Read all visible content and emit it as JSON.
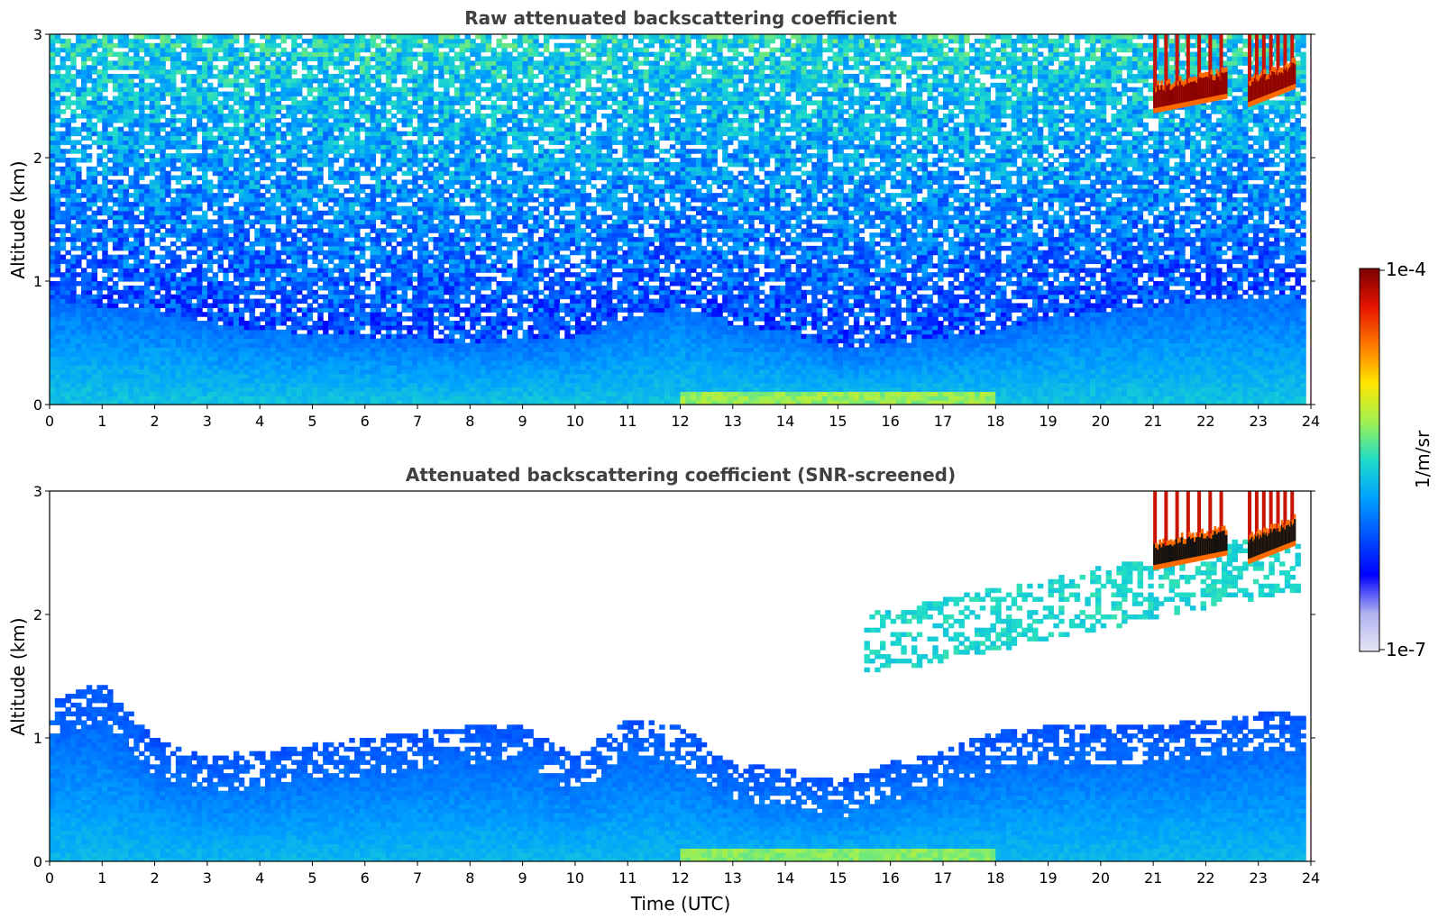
{
  "colorbar": {
    "label": "1/m/sr",
    "max_label": "1e-4",
    "min_label": "1e-7",
    "colormap": [
      "#e6e6f5",
      "#b0b0f0",
      "#0000ff",
      "#0050ff",
      "#00a0ff",
      "#1edcc8",
      "#a0f050",
      "#ffe600",
      "#ff7800",
      "#e61400",
      "#7a0000"
    ]
  },
  "chart_data": [
    {
      "type": "heatmap",
      "title": "Raw attenuated backscattering coefficient",
      "xlabel": "",
      "ylabel": "Altitude (km)",
      "xlim": [
        0,
        24
      ],
      "ylim": [
        0,
        3
      ],
      "x_ticks": [
        "0",
        "1",
        "2",
        "3",
        "4",
        "5",
        "6",
        "7",
        "8",
        "9",
        "10",
        "11",
        "12",
        "13",
        "14",
        "15",
        "16",
        "17",
        "18",
        "19",
        "20",
        "21",
        "22",
        "23",
        "24"
      ],
      "y_ticks": [
        "0",
        "1",
        "2",
        "3"
      ],
      "color_scale": "log",
      "value_range": [
        1e-07,
        0.0001
      ],
      "boundary_layer_top_km": [
        {
          "t": 0,
          "h": 0.85
        },
        {
          "t": 2,
          "h": 0.75
        },
        {
          "t": 4,
          "h": 0.6
        },
        {
          "t": 6,
          "h": 0.55
        },
        {
          "t": 8,
          "h": 0.5
        },
        {
          "t": 10,
          "h": 0.55
        },
        {
          "t": 11,
          "h": 0.7
        },
        {
          "t": 12,
          "h": 0.8
        },
        {
          "t": 13,
          "h": 0.65
        },
        {
          "t": 14,
          "h": 0.6
        },
        {
          "t": 15,
          "h": 0.45
        },
        {
          "t": 16,
          "h": 0.5
        },
        {
          "t": 17,
          "h": 0.55
        },
        {
          "t": 18,
          "h": 0.6
        },
        {
          "t": 19,
          "h": 0.7
        },
        {
          "t": 20,
          "h": 0.75
        },
        {
          "t": 21,
          "h": 0.8
        },
        {
          "t": 22,
          "h": 0.85
        },
        {
          "t": 23,
          "h": 0.85
        },
        {
          "t": 24,
          "h": 0.85
        }
      ],
      "cloud_layers": [
        {
          "t_start": 21.0,
          "t_end": 22.4,
          "alt_bottom_km": 2.4,
          "alt_top_km": 2.6
        },
        {
          "t_start": 22.8,
          "t_end": 23.7,
          "alt_bottom_km": 2.45,
          "alt_top_km": 2.7
        }
      ]
    },
    {
      "type": "heatmap",
      "title": "Attenuated backscattering coefficient (SNR-screened)",
      "xlabel": "Time (UTC)",
      "ylabel": "Altitude (km)",
      "xlim": [
        0,
        24
      ],
      "ylim": [
        0,
        3
      ],
      "x_ticks": [
        "0",
        "1",
        "2",
        "3",
        "4",
        "5",
        "6",
        "7",
        "8",
        "9",
        "10",
        "11",
        "12",
        "13",
        "14",
        "15",
        "16",
        "17",
        "18",
        "19",
        "20",
        "21",
        "22",
        "23",
        "24"
      ],
      "y_ticks": [
        "0",
        "1",
        "2",
        "3"
      ],
      "color_scale": "log",
      "value_range": [
        1e-07,
        0.0001
      ],
      "screened_top_km": [
        {
          "t": 0,
          "h": 1.3
        },
        {
          "t": 1,
          "h": 1.45
        },
        {
          "t": 2,
          "h": 1.0
        },
        {
          "t": 3,
          "h": 0.85
        },
        {
          "t": 4,
          "h": 0.9
        },
        {
          "t": 5,
          "h": 0.95
        },
        {
          "t": 6,
          "h": 1.0
        },
        {
          "t": 7,
          "h": 1.05
        },
        {
          "t": 8,
          "h": 1.1
        },
        {
          "t": 9,
          "h": 1.1
        },
        {
          "t": 10,
          "h": 0.85
        },
        {
          "t": 11,
          "h": 1.15
        },
        {
          "t": 12,
          "h": 1.1
        },
        {
          "t": 13,
          "h": 0.8
        },
        {
          "t": 14,
          "h": 0.75
        },
        {
          "t": 15,
          "h": 0.65
        },
        {
          "t": 16,
          "h": 0.8
        },
        {
          "t": 17,
          "h": 0.9
        },
        {
          "t": 18,
          "h": 1.05
        },
        {
          "t": 19,
          "h": 1.1
        },
        {
          "t": 20,
          "h": 1.1
        },
        {
          "t": 21,
          "h": 1.1
        },
        {
          "t": 22,
          "h": 1.15
        },
        {
          "t": 23,
          "h": 1.2
        },
        {
          "t": 24,
          "h": 1.2
        }
      ],
      "aerosol_layer": {
        "t_start": 15.5,
        "t_end": 23.8,
        "alt_bottom_km": 1.5,
        "alt_top_km": 2.6
      },
      "cloud_layers": [
        {
          "t_start": 21.0,
          "t_end": 22.4,
          "alt_bottom_km": 2.4,
          "alt_top_km": 2.6
        },
        {
          "t_start": 22.8,
          "t_end": 23.7,
          "alt_bottom_km": 2.45,
          "alt_top_km": 2.7
        }
      ]
    }
  ]
}
